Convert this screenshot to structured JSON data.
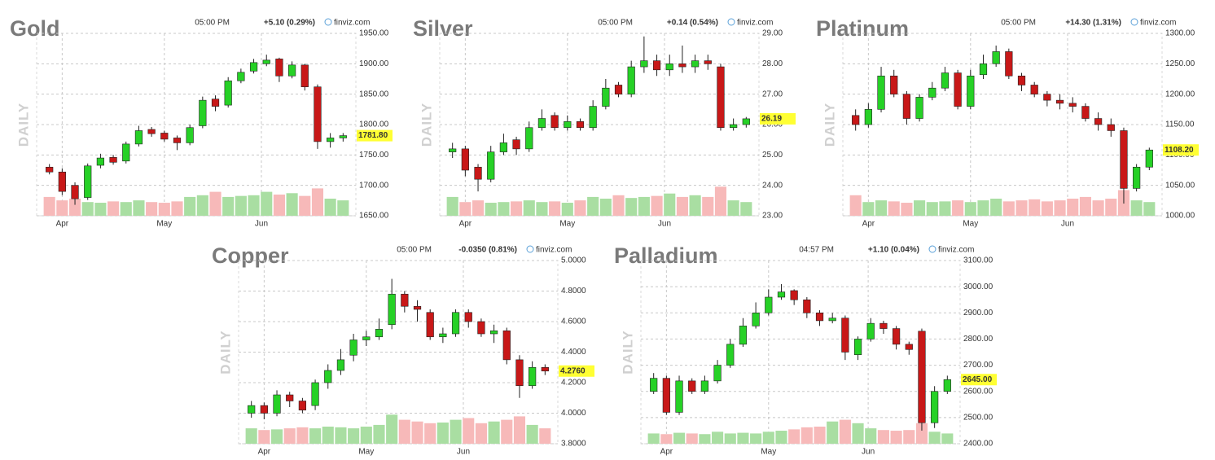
{
  "chart_data": [
    {
      "type": "candlestick",
      "title": "Gold",
      "time": "05:00 PM",
      "change": "+5.10 (0.29%)",
      "change_color": "#2e9e2e",
      "source": "finviz.com",
      "side_label": "DAILY",
      "ylim": [
        1650,
        1950
      ],
      "yticks": [
        {
          "value": 1650,
          "label": "1650.00"
        },
        {
          "value": 1700,
          "label": "1700.00"
        },
        {
          "value": 1750,
          "label": "1750.00"
        },
        {
          "value": 1800,
          "label": "1800.00"
        },
        {
          "value": 1850,
          "label": "1850.00"
        },
        {
          "value": 1900,
          "label": "1900.00"
        },
        {
          "value": 1950,
          "label": "1950.00"
        }
      ],
      "last": {
        "value": 1781.8,
        "label": "1781.80"
      },
      "xlim": [
        -1,
        24
      ],
      "xticks": [
        {
          "value": 1,
          "label": "Apr"
        },
        {
          "value": 9,
          "label": "May"
        },
        {
          "value": 16.6,
          "label": "Jun"
        }
      ],
      "x": [
        0,
        1,
        2,
        3,
        4,
        5,
        6,
        7,
        8,
        9,
        10,
        11,
        12,
        13,
        14,
        15,
        16,
        17,
        18,
        19,
        20,
        21,
        22,
        23
      ],
      "open": [
        1730,
        1722,
        1700,
        1680,
        1733,
        1746,
        1740,
        1768,
        1792,
        1786,
        1778,
        1770,
        1798,
        1842,
        1832,
        1872,
        1888,
        1900,
        1908,
        1880,
        1898,
        1862,
        1772,
        1778
      ],
      "high": [
        1735,
        1728,
        1705,
        1736,
        1752,
        1750,
        1772,
        1798,
        1796,
        1790,
        1782,
        1800,
        1846,
        1848,
        1878,
        1892,
        1908,
        1915,
        1910,
        1904,
        1900,
        1866,
        1786,
        1786
      ],
      "low": [
        1718,
        1684,
        1668,
        1676,
        1728,
        1734,
        1736,
        1764,
        1780,
        1772,
        1758,
        1766,
        1794,
        1822,
        1828,
        1868,
        1884,
        1896,
        1870,
        1876,
        1856,
        1760,
        1762,
        1772
      ],
      "close": [
        1722,
        1690,
        1678,
        1732,
        1745,
        1738,
        1768,
        1790,
        1785,
        1776,
        1770,
        1795,
        1840,
        1830,
        1872,
        1886,
        1902,
        1906,
        1880,
        1898,
        1862,
        1772,
        1778,
        1781.8
      ],
      "volume": [
        55,
        45,
        50,
        40,
        38,
        42,
        40,
        45,
        40,
        38,
        42,
        55,
        60,
        70,
        55,
        58,
        60,
        70,
        62,
        66,
        58,
        80,
        50,
        45
      ]
    },
    {
      "type": "candlestick",
      "title": "Silver",
      "time": "05:00 PM",
      "change": "+0.14 (0.54%)",
      "change_color": "#2e9e2e",
      "source": "finviz.com",
      "side_label": "DAILY",
      "ylim": [
        23,
        29
      ],
      "yticks": [
        {
          "value": 23,
          "label": "23.00"
        },
        {
          "value": 24,
          "label": "24.00"
        },
        {
          "value": 25,
          "label": "25.00"
        },
        {
          "value": 26,
          "label": "26.00"
        },
        {
          "value": 27,
          "label": "27.00"
        },
        {
          "value": 28,
          "label": "28.00"
        },
        {
          "value": 29,
          "label": "29.00"
        }
      ],
      "last": {
        "value": 26.19,
        "label": "26.19"
      },
      "xlim": [
        -1,
        24
      ],
      "xticks": [
        {
          "value": 1,
          "label": "Apr"
        },
        {
          "value": 9,
          "label": "May"
        },
        {
          "value": 16.6,
          "label": "Jun"
        }
      ],
      "x": [
        0,
        1,
        2,
        3,
        4,
        5,
        6,
        7,
        8,
        9,
        10,
        11,
        12,
        13,
        14,
        15,
        16,
        17,
        18,
        19,
        20,
        21,
        22,
        23
      ],
      "open": [
        25.1,
        25.2,
        24.6,
        24.2,
        25.1,
        25.5,
        25.2,
        25.9,
        26.3,
        25.9,
        26.1,
        25.9,
        26.6,
        27.3,
        27.0,
        27.9,
        28.1,
        27.8,
        28.0,
        27.9,
        28.1,
        27.9,
        25.9,
        26.0
      ],
      "high": [
        25.4,
        25.3,
        24.7,
        25.3,
        25.7,
        25.6,
        26.1,
        26.5,
        26.4,
        26.3,
        26.2,
        26.8,
        27.5,
        27.4,
        28.1,
        28.9,
        28.3,
        28.3,
        28.6,
        28.3,
        28.3,
        28.0,
        26.2,
        26.25
      ],
      "low": [
        24.9,
        24.3,
        23.8,
        24.1,
        25.0,
        25.0,
        25.1,
        25.8,
        25.8,
        25.8,
        25.8,
        25.8,
        26.5,
        26.9,
        26.9,
        27.7,
        27.6,
        27.6,
        27.7,
        27.7,
        27.8,
        25.8,
        25.8,
        25.9
      ],
      "close": [
        25.2,
        24.5,
        24.2,
        25.1,
        25.4,
        25.2,
        25.9,
        26.2,
        25.9,
        26.1,
        25.9,
        26.6,
        27.2,
        27.0,
        27.9,
        28.1,
        27.8,
        28.0,
        27.9,
        28.1,
        28.0,
        25.9,
        26.0,
        26.19
      ],
      "volume": [
        55,
        40,
        45,
        38,
        40,
        42,
        45,
        40,
        42,
        38,
        45,
        55,
        50,
        60,
        52,
        55,
        58,
        65,
        55,
        60,
        55,
        85,
        45,
        40
      ]
    },
    {
      "type": "candlestick",
      "title": "Platinum",
      "time": "05:00 PM",
      "change": "+14.30 (1.31%)",
      "change_color": "#2e9e2e",
      "source": "finviz.com",
      "side_label": "DAILY",
      "ylim": [
        1000,
        1300
      ],
      "yticks": [
        {
          "value": 1000,
          "label": "1000.00"
        },
        {
          "value": 1050,
          "label": "1050.00"
        },
        {
          "value": 1100,
          "label": "1100.00"
        },
        {
          "value": 1150,
          "label": "1150.00"
        },
        {
          "value": 1200,
          "label": "1200.00"
        },
        {
          "value": 1250,
          "label": "1250.00"
        },
        {
          "value": 1300,
          "label": "1300.00"
        }
      ],
      "last": {
        "value": 1108.2,
        "label": "1108.20"
      },
      "xlim": [
        -1,
        24
      ],
      "xticks": [
        {
          "value": 1,
          "label": "Apr"
        },
        {
          "value": 9,
          "label": "May"
        },
        {
          "value": 16.6,
          "label": "Jun"
        }
      ],
      "x": [
        0,
        1,
        2,
        3,
        4,
        5,
        6,
        7,
        8,
        9,
        10,
        11,
        12,
        13,
        14,
        15,
        16,
        17,
        18,
        19,
        20,
        21,
        22,
        23
      ],
      "open": [
        1165,
        1150,
        1175,
        1230,
        1200,
        1160,
        1195,
        1210,
        1235,
        1180,
        1232,
        1250,
        1270,
        1230,
        1215,
        1200,
        1190,
        1185,
        1180,
        1160,
        1150,
        1140,
        1045,
        1080
      ],
      "high": [
        1175,
        1185,
        1245,
        1240,
        1205,
        1200,
        1220,
        1245,
        1240,
        1240,
        1265,
        1280,
        1275,
        1235,
        1220,
        1205,
        1200,
        1195,
        1185,
        1170,
        1160,
        1145,
        1085,
        1112
      ],
      "low": [
        1140,
        1145,
        1170,
        1195,
        1150,
        1155,
        1190,
        1205,
        1175,
        1175,
        1225,
        1245,
        1225,
        1205,
        1195,
        1180,
        1175,
        1170,
        1155,
        1140,
        1130,
        1020,
        1040,
        1075
      ],
      "close": [
        1150,
        1175,
        1230,
        1200,
        1160,
        1195,
        1210,
        1235,
        1180,
        1230,
        1250,
        1270,
        1230,
        1215,
        1200,
        1190,
        1185,
        1180,
        1160,
        1150,
        1140,
        1045,
        1080,
        1108.2
      ],
      "volume": [
        60,
        40,
        45,
        42,
        38,
        45,
        40,
        42,
        45,
        40,
        45,
        50,
        42,
        45,
        48,
        42,
        45,
        50,
        55,
        45,
        50,
        75,
        45,
        40
      ]
    },
    {
      "type": "candlestick",
      "title": "Copper",
      "time": "05:00 PM",
      "change": "-0.0350 (0.81%)",
      "change_color": "#d42020",
      "source": "finviz.com",
      "side_label": "DAILY",
      "ylim": [
        3.8,
        5.0
      ],
      "yticks": [
        {
          "value": 3.8,
          "label": "3.8000"
        },
        {
          "value": 4.0,
          "label": "4.0000"
        },
        {
          "value": 4.2,
          "label": "4.2000"
        },
        {
          "value": 4.4,
          "label": "4.4000"
        },
        {
          "value": 4.6,
          "label": "4.6000"
        },
        {
          "value": 4.8,
          "label": "4.8000"
        },
        {
          "value": 5.0,
          "label": "5.0000"
        }
      ],
      "last": {
        "value": 4.276,
        "label": "4.2760"
      },
      "xlim": [
        -1,
        24
      ],
      "xticks": [
        {
          "value": 1,
          "label": "Apr"
        },
        {
          "value": 9,
          "label": "May"
        },
        {
          "value": 16.6,
          "label": "Jun"
        }
      ],
      "x": [
        0,
        1,
        2,
        3,
        4,
        5,
        6,
        7,
        8,
        9,
        10,
        11,
        12,
        13,
        14,
        15,
        16,
        17,
        18,
        19,
        20,
        21,
        22,
        23
      ],
      "open": [
        4.0,
        4.05,
        4.0,
        4.12,
        4.08,
        4.05,
        4.2,
        4.28,
        4.38,
        4.48,
        4.5,
        4.58,
        4.78,
        4.7,
        4.66,
        4.5,
        4.52,
        4.66,
        4.6,
        4.52,
        4.54,
        4.35,
        4.18,
        4.3
      ],
      "high": [
        4.08,
        4.07,
        4.15,
        4.14,
        4.1,
        4.22,
        4.32,
        4.42,
        4.52,
        4.54,
        4.62,
        4.88,
        4.8,
        4.74,
        4.68,
        4.56,
        4.68,
        4.68,
        4.62,
        4.58,
        4.56,
        4.38,
        4.34,
        4.32
      ],
      "low": [
        3.97,
        3.96,
        3.98,
        4.04,
        4.0,
        4.02,
        4.16,
        4.25,
        4.34,
        4.44,
        4.48,
        4.55,
        4.66,
        4.6,
        4.48,
        4.46,
        4.5,
        4.56,
        4.5,
        4.46,
        4.32,
        4.1,
        4.16,
        4.25
      ],
      "close": [
        4.05,
        4.0,
        4.12,
        4.08,
        4.02,
        4.2,
        4.28,
        4.35,
        4.48,
        4.5,
        4.55,
        4.78,
        4.7,
        4.68,
        4.5,
        4.52,
        4.66,
        4.6,
        4.52,
        4.54,
        4.35,
        4.18,
        4.3,
        4.276
      ],
      "volume": [
        45,
        40,
        42,
        45,
        48,
        45,
        50,
        48,
        45,
        50,
        55,
        85,
        70,
        65,
        60,
        62,
        70,
        75,
        60,
        65,
        70,
        80,
        55,
        45
      ]
    },
    {
      "type": "candlestick",
      "title": "Palladium",
      "time": "04:57 PM",
      "change": "+1.10 (0.04%)",
      "change_color": "#2e9e2e",
      "source": "finviz.com",
      "side_label": "DAILY",
      "ylim": [
        2400,
        3100
      ],
      "yticks": [
        {
          "value": 2400,
          "label": "2400.00"
        },
        {
          "value": 2500,
          "label": "2500.00"
        },
        {
          "value": 2600,
          "label": "2600.00"
        },
        {
          "value": 2700,
          "label": "2700.00"
        },
        {
          "value": 2800,
          "label": "2800.00"
        },
        {
          "value": 2900,
          "label": "2900.00"
        },
        {
          "value": 3000,
          "label": "3000.00"
        },
        {
          "value": 3100,
          "label": "3100.00"
        }
      ],
      "last": {
        "value": 2645,
        "label": "2645.00"
      },
      "xlim": [
        -1,
        24
      ],
      "xticks": [
        {
          "value": 1,
          "label": "Apr"
        },
        {
          "value": 9,
          "label": "May"
        },
        {
          "value": 16.8,
          "label": "Jun"
        }
      ],
      "x": [
        0,
        1,
        2,
        3,
        4,
        5,
        6,
        7,
        8,
        9,
        10,
        11,
        12,
        13,
        14,
        15,
        16,
        17,
        18,
        19,
        20,
        21,
        22,
        23
      ],
      "open": [
        2600,
        2650,
        2520,
        2640,
        2600,
        2640,
        2700,
        2780,
        2850,
        2900,
        2960,
        2985,
        2950,
        2900,
        2870,
        2880,
        2740,
        2800,
        2860,
        2840,
        2780,
        2830,
        2480,
        2600
      ],
      "high": [
        2670,
        2660,
        2660,
        2650,
        2660,
        2720,
        2800,
        2880,
        2940,
        2990,
        3010,
        2990,
        2960,
        2910,
        2900,
        2890,
        2810,
        2880,
        2870,
        2850,
        2790,
        2840,
        2620,
        2660
      ],
      "low": [
        2590,
        2510,
        2510,
        2590,
        2590,
        2630,
        2690,
        2770,
        2840,
        2890,
        2950,
        2930,
        2880,
        2850,
        2860,
        2720,
        2720,
        2790,
        2820,
        2760,
        2740,
        2450,
        2460,
        2590
      ],
      "close": [
        2650,
        2520,
        2640,
        2600,
        2640,
        2700,
        2780,
        2850,
        2900,
        2960,
        2980,
        2950,
        2900,
        2870,
        2880,
        2750,
        2800,
        2860,
        2840,
        2780,
        2760,
        2480,
        2600,
        2645
      ],
      "volume": [
        30,
        28,
        32,
        30,
        28,
        35,
        30,
        32,
        30,
        35,
        38,
        42,
        48,
        50,
        65,
        70,
        60,
        45,
        40,
        38,
        40,
        60,
        35,
        30
      ]
    }
  ]
}
